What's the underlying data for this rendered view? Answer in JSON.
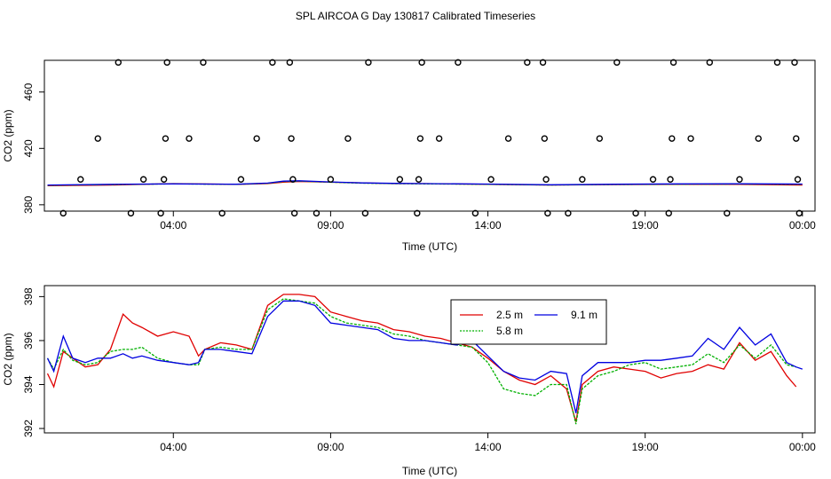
{
  "title": "SPL AIRCOA G  Day 130817  Calibrated Timeseries",
  "chart_data": [
    {
      "type": "scatter",
      "xlabel": "Time (UTC)",
      "ylabel": "CO2 (ppm)",
      "x_ticks": [
        {
          "value": 4,
          "label": "04:00"
        },
        {
          "value": 9,
          "label": "09:00"
        },
        {
          "value": 14,
          "label": "14:00"
        },
        {
          "value": 19,
          "label": "19:00"
        },
        {
          "value": 24,
          "label": "00:00"
        }
      ],
      "y_ticks": [
        380,
        420,
        460
      ],
      "xlim": [
        -0.1,
        24.4
      ],
      "ylim": [
        375.5,
        482.5
      ],
      "points": [
        [
          0.5,
          374
        ],
        [
          1.05,
          398
        ],
        [
          1.6,
          427
        ],
        [
          2.25,
          481
        ],
        [
          2.65,
          374
        ],
        [
          3.05,
          398
        ],
        [
          3.6,
          374
        ],
        [
          3.7,
          398
        ],
        [
          3.75,
          427
        ],
        [
          3.8,
          481
        ],
        [
          4.5,
          427
        ],
        [
          4.95,
          481
        ],
        [
          5.55,
          374
        ],
        [
          6.15,
          398
        ],
        [
          6.65,
          427
        ],
        [
          7.15,
          481
        ],
        [
          7.7,
          481
        ],
        [
          7.75,
          427
        ],
        [
          7.8,
          398
        ],
        [
          7.85,
          374
        ],
        [
          8.55,
          374
        ],
        [
          9.0,
          398
        ],
        [
          9.55,
          427
        ],
        [
          10.1,
          374
        ],
        [
          10.2,
          481
        ],
        [
          11.2,
          398
        ],
        [
          11.75,
          374
        ],
        [
          11.8,
          398
        ],
        [
          11.85,
          427
        ],
        [
          11.9,
          481
        ],
        [
          12.45,
          427
        ],
        [
          13.05,
          481
        ],
        [
          13.6,
          374
        ],
        [
          14.1,
          398
        ],
        [
          14.65,
          427
        ],
        [
          15.25,
          481
        ],
        [
          15.75,
          481
        ],
        [
          15.8,
          427
        ],
        [
          15.85,
          398
        ],
        [
          15.9,
          374
        ],
        [
          16.55,
          374
        ],
        [
          17.0,
          398
        ],
        [
          17.55,
          427
        ],
        [
          18.1,
          481
        ],
        [
          18.7,
          374
        ],
        [
          19.25,
          398
        ],
        [
          19.75,
          374
        ],
        [
          19.8,
          398
        ],
        [
          19.85,
          427
        ],
        [
          19.9,
          481
        ],
        [
          20.45,
          427
        ],
        [
          21.05,
          481
        ],
        [
          21.6,
          374
        ],
        [
          22.0,
          398
        ],
        [
          22.6,
          427
        ],
        [
          23.2,
          481
        ],
        [
          23.75,
          481
        ],
        [
          23.8,
          427
        ],
        [
          23.85,
          398
        ],
        [
          23.9,
          374
        ]
      ],
      "series": [
        {
          "name": "2.5 m",
          "color": "#e00000",
          "x": [
            0,
            2,
            4,
            6,
            7,
            7.5,
            8,
            9,
            10,
            11,
            12,
            14,
            16,
            18,
            20,
            22,
            24
          ],
          "values": [
            393.5,
            394,
            395,
            394.5,
            395,
            396,
            396.5,
            396,
            395.5,
            395,
            395,
            394.5,
            394,
            394.3,
            394.5,
            394.5,
            394
          ]
        },
        {
          "name": "5.8 m",
          "color": "#00b000",
          "x": [
            0,
            2,
            4,
            6,
            7,
            7.5,
            8,
            9,
            10,
            11,
            12,
            14,
            16,
            18,
            20,
            22,
            24
          ],
          "values": [
            393.8,
            394.3,
            394.8,
            394.5,
            395.2,
            396.5,
            396.8,
            396,
            395.3,
            395,
            394.8,
            394.5,
            394,
            394.4,
            394.6,
            394.7,
            394.5
          ]
        },
        {
          "name": "9.1 m",
          "color": "#0000e0",
          "x": [
            0,
            2,
            4,
            6,
            7,
            7.5,
            8,
            9,
            10,
            11,
            12,
            14,
            16,
            18,
            20,
            22,
            24
          ],
          "values": [
            394,
            394.5,
            394.8,
            394.6,
            395.4,
            396.8,
            397,
            396.2,
            395.5,
            395.2,
            395,
            394.7,
            394.2,
            394.6,
            394.8,
            394.9,
            394.7
          ]
        }
      ]
    },
    {
      "type": "line",
      "xlabel": "Time (UTC)",
      "ylabel": "CO2 (ppm)",
      "x_ticks": [
        {
          "value": 4,
          "label": "04:00"
        },
        {
          "value": 9,
          "label": "09:00"
        },
        {
          "value": 14,
          "label": "14:00"
        },
        {
          "value": 19,
          "label": "19:00"
        },
        {
          "value": 24,
          "label": "00:00"
        }
      ],
      "y_ticks": [
        392,
        394,
        396,
        398
      ],
      "xlim": [
        -0.1,
        24.4
      ],
      "ylim": [
        391.8,
        398.5
      ],
      "legend": {
        "position": "top-center",
        "entries": [
          "2.5 m",
          "9.1 m",
          "5.8 m"
        ]
      },
      "series": [
        {
          "name": "2.5 m",
          "color": "#e00000",
          "x": [
            0,
            0.2,
            0.5,
            0.8,
            1.2,
            1.6,
            2.0,
            2.4,
            2.7,
            3.0,
            3.5,
            4.0,
            4.5,
            4.8,
            5.0,
            5.5,
            6.0,
            6.5,
            7.0,
            7.5,
            8.0,
            8.5,
            9.0,
            9.5,
            10.0,
            10.5,
            11.0,
            11.5,
            12.0,
            12.5,
            13.0,
            13.5,
            14.0,
            14.5,
            15.0,
            15.5,
            16.0,
            16.5,
            16.8,
            17.0,
            17.5,
            18.0,
            18.5,
            19.0,
            19.5,
            20.0,
            20.5,
            21.0,
            21.5,
            22.0,
            22.5,
            23.0,
            23.5,
            23.8
          ],
          "values": [
            394.5,
            393.9,
            395.5,
            395.2,
            394.8,
            394.9,
            395.6,
            397.2,
            396.8,
            396.6,
            396.2,
            396.4,
            396.2,
            395.3,
            395.6,
            395.9,
            395.8,
            395.6,
            397.6,
            398.1,
            398.1,
            398.0,
            397.3,
            397.1,
            396.9,
            396.8,
            396.5,
            396.4,
            396.2,
            396.1,
            395.9,
            395.7,
            395.2,
            394.6,
            394.2,
            394.0,
            394.4,
            393.8,
            392.3,
            394.0,
            394.6,
            394.8,
            394.7,
            394.6,
            394.3,
            394.5,
            394.6,
            394.9,
            394.7,
            395.9,
            395.1,
            395.5,
            394.4,
            393.9
          ]
        },
        {
          "name": "5.8 m",
          "color": "#00b000",
          "x": [
            0,
            0.2,
            0.5,
            0.8,
            1.2,
            1.6,
            2.0,
            2.4,
            2.7,
            3.0,
            3.5,
            4.0,
            4.5,
            4.8,
            5.0,
            5.5,
            6.0,
            6.5,
            7.0,
            7.5,
            8.0,
            8.5,
            9.0,
            9.5,
            10.0,
            10.5,
            11.0,
            11.5,
            12.0,
            12.5,
            13.0,
            13.5,
            14.0,
            14.5,
            15.0,
            15.5,
            16.0,
            16.5,
            16.8,
            17.0,
            17.5,
            18.0,
            18.5,
            19.0,
            19.5,
            20.0,
            20.5,
            21.0,
            21.5,
            22.0,
            22.5,
            23.0,
            23.5,
            23.8
          ],
          "values": [
            395.2,
            394.7,
            395.6,
            395.1,
            394.9,
            395.0,
            395.5,
            395.6,
            395.6,
            395.7,
            395.2,
            395.0,
            394.9,
            394.9,
            395.6,
            395.7,
            395.6,
            395.6,
            397.4,
            397.9,
            397.8,
            397.7,
            397.1,
            396.8,
            396.7,
            396.6,
            396.3,
            396.2,
            396.0,
            395.9,
            395.8,
            395.7,
            395.0,
            393.8,
            393.6,
            393.5,
            394.0,
            394.0,
            392.2,
            393.8,
            394.4,
            394.6,
            394.9,
            395.0,
            394.7,
            394.8,
            394.9,
            395.4,
            395.0,
            395.8,
            395.2,
            395.8,
            394.9,
            394.8
          ]
        },
        {
          "name": "9.1 m",
          "color": "#0000e0",
          "x": [
            0,
            0.2,
            0.5,
            0.8,
            1.2,
            1.6,
            2.0,
            2.4,
            2.7,
            3.0,
            3.5,
            4.0,
            4.5,
            4.8,
            5.0,
            5.5,
            6.0,
            6.5,
            7.0,
            7.5,
            8.0,
            8.5,
            9.0,
            9.5,
            10.0,
            10.5,
            11.0,
            11.5,
            12.0,
            12.5,
            13.0,
            13.5,
            14.0,
            14.5,
            15.0,
            15.5,
            16.0,
            16.5,
            16.8,
            17.0,
            17.5,
            18.0,
            18.5,
            19.0,
            19.5,
            20.0,
            20.5,
            21.0,
            21.5,
            22.0,
            22.5,
            23.0,
            23.5,
            23.8,
            24.0
          ],
          "values": [
            395.2,
            394.6,
            396.2,
            395.2,
            395.0,
            395.2,
            395.2,
            395.4,
            395.2,
            395.3,
            395.1,
            395.0,
            394.9,
            395.0,
            395.6,
            395.6,
            395.5,
            395.4,
            397.1,
            397.8,
            397.8,
            397.6,
            396.8,
            396.7,
            396.6,
            396.5,
            396.1,
            396.0,
            396.0,
            395.9,
            395.8,
            396.0,
            395.3,
            394.6,
            394.3,
            394.2,
            394.6,
            394.5,
            392.7,
            394.4,
            395.0,
            395.0,
            395.0,
            395.1,
            395.1,
            395.2,
            395.3,
            396.1,
            395.6,
            396.6,
            395.8,
            396.3,
            395.0,
            394.8,
            394.7
          ]
        }
      ]
    }
  ]
}
